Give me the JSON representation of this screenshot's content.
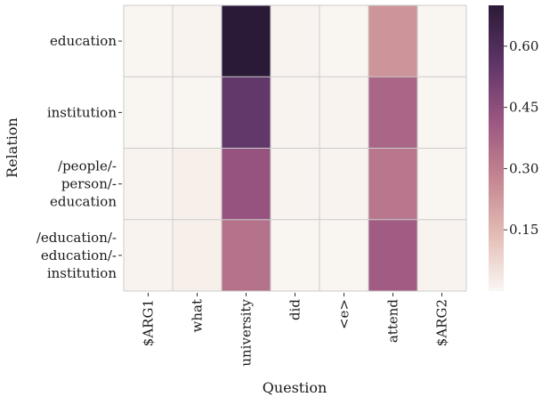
{
  "chart_data": {
    "type": "heatmap",
    "xlabel": "Question",
    "ylabel": "Relation",
    "x_categories": [
      "$ARG1",
      "what",
      "university",
      "did",
      "<e>",
      "attend",
      "$ARG2"
    ],
    "y_categories": [
      [
        "education"
      ],
      [
        "institution"
      ],
      [
        "/people/-",
        "person/-",
        "education"
      ],
      [
        "/education/-",
        "education/-",
        "institution"
      ]
    ],
    "values": [
      [
        0.005,
        0.01,
        0.7,
        0.01,
        0.005,
        0.24,
        0.005
      ],
      [
        0.003,
        0.003,
        0.55,
        0.01,
        0.01,
        0.37,
        0.005
      ],
      [
        0.01,
        0.02,
        0.43,
        0.01,
        0.01,
        0.32,
        0.005
      ],
      [
        0.01,
        0.02,
        0.33,
        0.005,
        0.005,
        0.4,
        0.01
      ]
    ],
    "colorbar": {
      "min": 0.0,
      "max": 0.7,
      "ticks": [
        0.15,
        0.3,
        0.45,
        0.6
      ],
      "tick_labels": [
        "0.15",
        "0.30",
        "0.45",
        "0.60"
      ]
    },
    "colormap_stops": [
      "#faf7f3",
      "#e2bcb4",
      "#c48490",
      "#9a5581",
      "#5e3567",
      "#2b1a37"
    ],
    "grid": true
  }
}
